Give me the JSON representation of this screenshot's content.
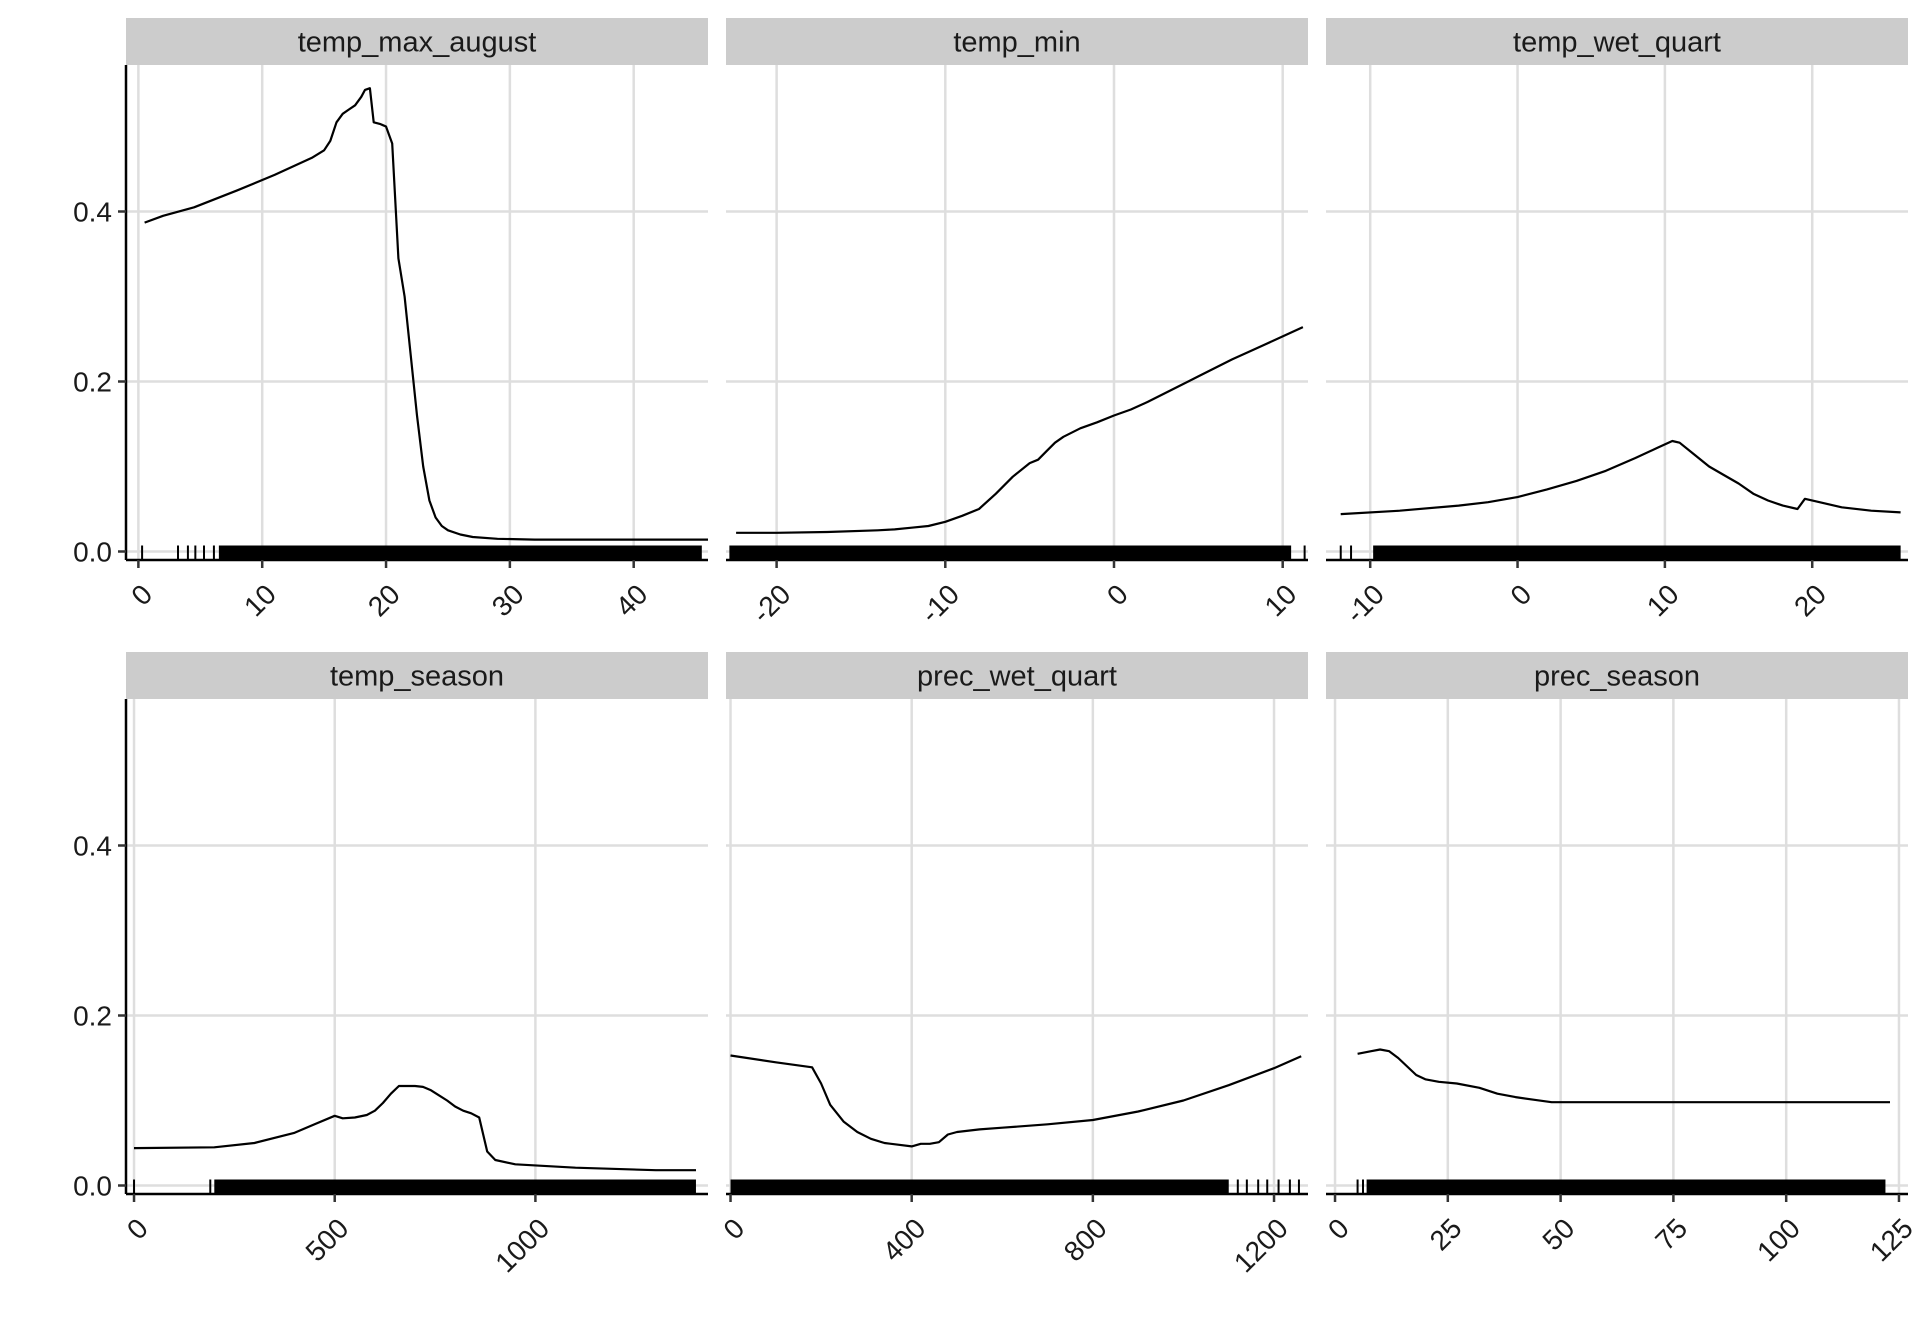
{
  "chart_data": {
    "type": "line",
    "shared_y": {
      "ylim": [
        0.0,
        0.56
      ],
      "ticks": [
        0.0,
        0.2,
        0.4
      ],
      "tick_labels": [
        "0.0",
        "0.2",
        "0.4"
      ],
      "ylabel": ""
    },
    "grid": true,
    "rug": true,
    "panels": [
      {
        "title": "temp_max_august",
        "xlim": [
          -1,
          46
        ],
        "xticks": [
          0,
          10,
          20,
          30,
          40
        ],
        "xtick_labels": [
          "0",
          "10",
          "20",
          "30",
          "40"
        ],
        "xlabel": "",
        "series": [
          {
            "x": [
              0.5,
              2,
              4.5,
              8,
              11,
              14,
              15,
              15.5,
              16,
              16.5,
              17,
              17.5,
              18,
              18.3,
              18.7,
              19,
              19.5,
              20,
              20.5,
              21,
              21.5,
              22,
              22.5,
              23,
              23.5,
              24,
              24.5,
              25,
              26,
              27,
              29,
              32,
              38,
              46
            ],
            "y": [
              0.387,
              0.395,
              0.405,
              0.425,
              0.443,
              0.463,
              0.472,
              0.483,
              0.505,
              0.515,
              0.52,
              0.525,
              0.535,
              0.543,
              0.545,
              0.505,
              0.503,
              0.5,
              0.48,
              0.345,
              0.3,
              0.23,
              0.16,
              0.1,
              0.06,
              0.04,
              0.03,
              0.025,
              0.02,
              0.017,
              0.015,
              0.014,
              0.014,
              0.014
            ]
          }
        ],
        "rug": {
          "from": 6.5,
          "to": 45.5,
          "sparse": [
            0.3,
            3.2,
            4,
            4.6,
            5.3,
            6.1
          ]
        }
      },
      {
        "title": "temp_min",
        "xlim": [
          -23,
          11.5
        ],
        "xticks": [
          -20,
          -10,
          0,
          10
        ],
        "xtick_labels": [
          "-20",
          "-10",
          "0",
          "10"
        ],
        "xlabel": "",
        "series": [
          {
            "x": [
              -22.4,
              -20,
              -17,
              -14,
              -13,
              -12,
              -11,
              -10,
              -9,
              -8,
              -7,
              -6,
              -5,
              -4.5,
              -4,
              -3.5,
              -3,
              -2,
              -1,
              0,
              1,
              2,
              3,
              4,
              5,
              6,
              7,
              8,
              9,
              10,
              11.2
            ],
            "y": [
              0.022,
              0.022,
              0.023,
              0.025,
              0.026,
              0.028,
              0.03,
              0.035,
              0.042,
              0.05,
              0.068,
              0.088,
              0.104,
              0.108,
              0.118,
              0.128,
              0.135,
              0.145,
              0.152,
              0.16,
              0.167,
              0.176,
              0.186,
              0.196,
              0.206,
              0.216,
              0.226,
              0.235,
              0.244,
              0.253,
              0.264
            ]
          }
        ],
        "rug": {
          "from": -22.8,
          "to": 10.5,
          "sparse": [
            11.3
          ]
        }
      },
      {
        "title": "temp_wet_quart",
        "xlim": [
          -13,
          26.5
        ],
        "xticks": [
          -10,
          0,
          10,
          20
        ],
        "xtick_labels": [
          "-10",
          "0",
          "10",
          "20"
        ],
        "xlabel": "",
        "series": [
          {
            "x": [
              -12,
              -8,
              -4,
              -2,
              0,
              2,
              4,
              6,
              8,
              9.5,
              10.5,
              11,
              12,
              13,
              14,
              15,
              16,
              17,
              18,
              19,
              19.5,
              20.5,
              22,
              24,
              26
            ],
            "y": [
              0.044,
              0.048,
              0.054,
              0.058,
              0.064,
              0.073,
              0.083,
              0.095,
              0.11,
              0.122,
              0.13,
              0.128,
              0.114,
              0.1,
              0.09,
              0.08,
              0.068,
              0.06,
              0.054,
              0.05,
              0.062,
              0.058,
              0.052,
              0.048,
              0.046
            ]
          }
        ],
        "rug": {
          "from": -9.8,
          "to": 26,
          "sparse": [
            -12,
            -11.3
          ]
        }
      },
      {
        "title": "temp_season",
        "xlim": [
          -20,
          1430
        ],
        "xticks": [
          0,
          500,
          1000
        ],
        "xtick_labels": [
          "0",
          "500",
          "1000"
        ],
        "xlabel": "",
        "series": [
          {
            "x": [
              0,
              200,
              300,
              400,
              450,
              500,
              520,
              550,
              580,
              600,
              620,
              640,
              660,
              680,
              700,
              720,
              740,
              760,
              780,
              800,
              820,
              840,
              860,
              880,
              900,
              950,
              1100,
              1300,
              1400
            ],
            "y": [
              0.044,
              0.045,
              0.05,
              0.062,
              0.072,
              0.082,
              0.079,
              0.08,
              0.083,
              0.088,
              0.097,
              0.108,
              0.117,
              0.117,
              0.117,
              0.116,
              0.112,
              0.106,
              0.1,
              0.093,
              0.088,
              0.085,
              0.08,
              0.04,
              0.03,
              0.025,
              0.021,
              0.018,
              0.018
            ]
          }
        ],
        "rug": {
          "from": 200,
          "to": 1400,
          "sparse": [
            0,
            190
          ]
        }
      },
      {
        "title": "prec_wet_quart",
        "xlim": [
          -10,
          1275
        ],
        "xticks": [
          0,
          400,
          800,
          1200
        ],
        "xtick_labels": [
          "0",
          "400",
          "800",
          "1200"
        ],
        "xlabel": "",
        "series": [
          {
            "x": [
              0,
              100,
              180,
              200,
              220,
              250,
              280,
              310,
              340,
              370,
              400,
              420,
              440,
              460,
              480,
              500,
              550,
              600,
              700,
              800,
              900,
              1000,
              1100,
              1200,
              1260
            ],
            "y": [
              0.153,
              0.145,
              0.139,
              0.12,
              0.095,
              0.075,
              0.063,
              0.055,
              0.05,
              0.048,
              0.046,
              0.049,
              0.049,
              0.051,
              0.06,
              0.063,
              0.066,
              0.068,
              0.072,
              0.077,
              0.087,
              0.1,
              0.118,
              0.138,
              0.152
            ]
          }
        ],
        "rug": {
          "from": 0,
          "to": 1100,
          "sparse": [
            1120,
            1140,
            1165,
            1185,
            1210,
            1235,
            1255
          ]
        }
      },
      {
        "title": "prec_season",
        "xlim": [
          -2,
          127
        ],
        "xticks": [
          0,
          25,
          50,
          75,
          100,
          125
        ],
        "xtick_labels": [
          "0",
          "25",
          "50",
          "75",
          "100",
          "125"
        ],
        "xlabel": "",
        "series": [
          {
            "x": [
              5,
              8,
              10,
              12,
              14,
              16,
              18,
              20,
              23,
              27,
              32,
              36,
              40,
              44,
              48,
              55,
              70,
              90,
              110,
              123
            ],
            "y": [
              0.155,
              0.158,
              0.16,
              0.158,
              0.15,
              0.14,
              0.13,
              0.125,
              0.122,
              0.12,
              0.115,
              0.108,
              0.104,
              0.101,
              0.098,
              0.098,
              0.098,
              0.098,
              0.098,
              0.098
            ]
          }
        ],
        "rug": {
          "from": 7,
          "to": 122,
          "sparse": [
            5,
            6.2
          ]
        }
      }
    ]
  }
}
